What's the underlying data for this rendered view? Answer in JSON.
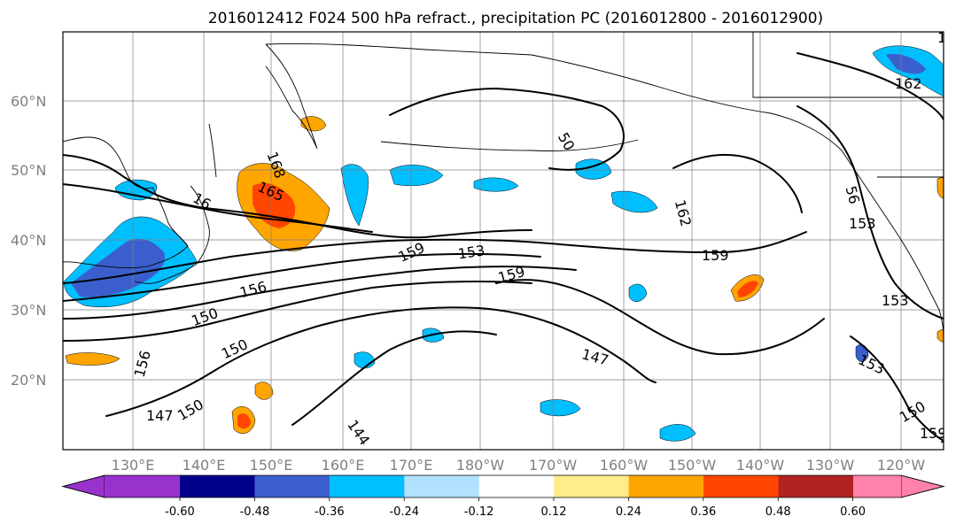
{
  "title": "2016012412 F024 500 hPa refract., precipitation PC (2016012800 - 2016012900)",
  "map": {
    "lat_labels": [
      "60°N",
      "50°N",
      "40°N",
      "30°N",
      "20°N"
    ],
    "lon_labels": [
      "130°E",
      "140°E",
      "150°E",
      "160°E",
      "170°E",
      "180°W",
      "170°W",
      "160°W",
      "150°W",
      "140°W",
      "130°W",
      "120°W"
    ],
    "contour_labels": [
      "165",
      "168",
      "162",
      "16",
      "165",
      "50",
      "162",
      "56",
      "153",
      "159",
      "159",
      "153",
      "159",
      "156",
      "159",
      "150",
      "153",
      "150",
      "156",
      "147",
      "153",
      "150",
      "150",
      "147",
      "144",
      "159",
      "159"
    ]
  },
  "colorbar": {
    "colors": [
      "#9932CC",
      "#00008B",
      "#3A5FCD",
      "#00BFFF",
      "#B0E2FF",
      "#FFFFFF",
      "#FFEC8B",
      "#FFA500",
      "#FF4500",
      "#B22222",
      "#FF82AB"
    ],
    "tick_labels": [
      "-0.60",
      "-0.48",
      "-0.36",
      "-0.24",
      "-0.12",
      "0.12",
      "0.24",
      "0.36",
      "0.48",
      "0.60"
    ]
  }
}
